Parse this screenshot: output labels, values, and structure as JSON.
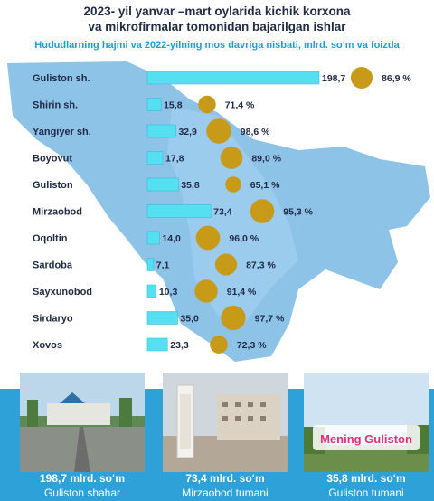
{
  "title_line1": "2023- yil yanvar –mart oylarida kichik korxona",
  "title_line2": "va mikrofirmalar tomonidan bajarilgan ishlar",
  "subtitle": "Hududlarning hajmi va 2022-yilning mos davriga nisbati, mlrd. so‘m va foizda",
  "chart_data": {
    "type": "bar",
    "orientation": "horizontal",
    "categories": [
      "Guliston sh.",
      "Shirin sh.",
      "Yangiyer sh.",
      "Boyovut",
      "Guliston",
      "Mirzaobod",
      "Oqoltin",
      "Sardoba",
      "Sayxunobod",
      "Sirdaryo",
      "Xovos"
    ],
    "series": [
      {
        "values": [
          198.7,
          15.8,
          32.9,
          17.8,
          35.8,
          73.4,
          14.0,
          7.1,
          10.3,
          35.0,
          23.3
        ]
      },
      {
        "values": [
          86.9,
          71.4,
          98.6,
          89.0,
          65.1,
          95.3,
          96.0,
          87.3,
          91.4,
          97.7,
          72.3
        ]
      }
    ],
    "value_labels": [
      "198,7",
      "15,8",
      "32,9",
      "17,8",
      "35,8",
      "73,4",
      "14,0",
      "7,1",
      "10,3",
      "35,0",
      "23,3"
    ],
    "percent_labels": [
      "86,9 %",
      "71,4 %",
      "98,6 %",
      "89,0 %",
      "65,1 %",
      "95,3 %",
      "96,0 %",
      "87,3 %",
      "91,4 %",
      "97,7 %",
      "72,3 %"
    ]
  },
  "colors": {
    "bar": "#55e0f2",
    "bubble": "#c79a1a",
    "map": "#7ab9e4",
    "caption_bg": "#2ea2d8"
  },
  "cards": [
    {
      "value": "198,7 mlrd. so‘m",
      "name": "Guliston shahar"
    },
    {
      "value": "73,4 mlrd. so‘m",
      "name": "Mirzaobod tumani"
    },
    {
      "value": "35,8 mlrd. so‘m",
      "name": "Guliston tumani"
    }
  ],
  "photo3_sign": "Mening Guliston"
}
